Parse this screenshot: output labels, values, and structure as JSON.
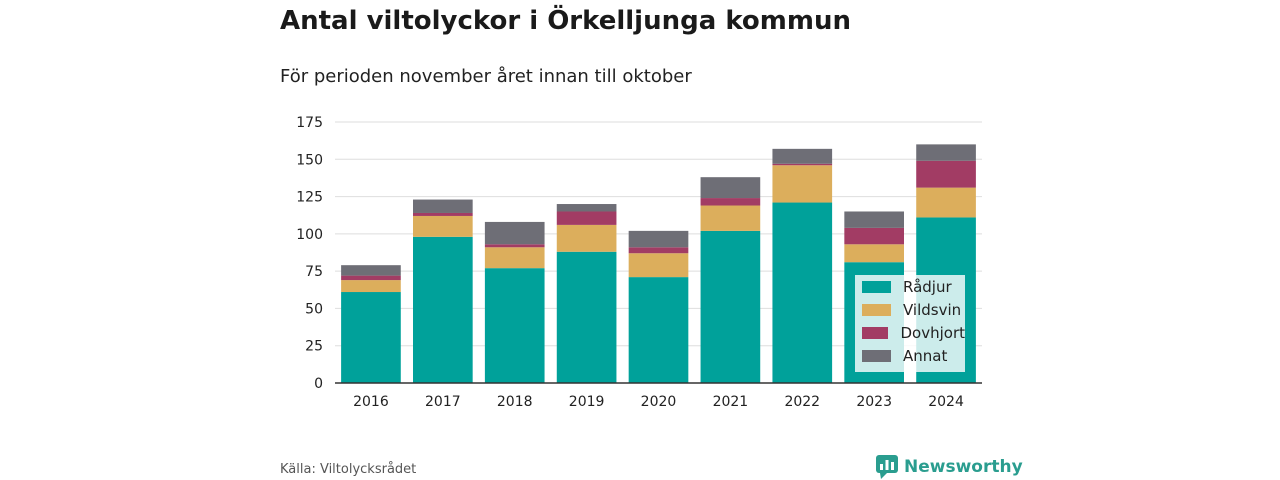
{
  "title": "Antal viltolyckor i Örkelljunga kommun",
  "subtitle": "För perioden november året innan till oktober",
  "source": "Källa: Viltolycksrådet",
  "brand": {
    "name": "Newsworthy",
    "icon": "newsworthy-logo-icon",
    "color": "#2a9d8f"
  },
  "chart_data": {
    "type": "bar",
    "stacked": true,
    "categories": [
      "2016",
      "2017",
      "2018",
      "2019",
      "2020",
      "2021",
      "2022",
      "2023",
      "2024"
    ],
    "series": [
      {
        "name": "Rådjur",
        "color": "#00a19a",
        "values": [
          61,
          98,
          77,
          88,
          71,
          102,
          121,
          81,
          111
        ]
      },
      {
        "name": "Vildsvin",
        "color": "#dcae5c",
        "values": [
          8,
          14,
          14,
          18,
          16,
          17,
          25,
          12,
          20
        ]
      },
      {
        "name": "Dovhjort",
        "color": "#a23c64",
        "values": [
          3,
          2,
          2,
          9,
          4,
          5,
          1,
          11,
          18
        ]
      },
      {
        "name": "Annat",
        "color": "#6e6e76",
        "values": [
          7,
          9,
          15,
          5,
          11,
          14,
          10,
          11,
          11
        ]
      }
    ],
    "ylim": [
      0,
      175
    ],
    "yticks": [
      0,
      25,
      50,
      75,
      100,
      125,
      150,
      175
    ],
    "grid": true,
    "legend": "bottom-right"
  }
}
